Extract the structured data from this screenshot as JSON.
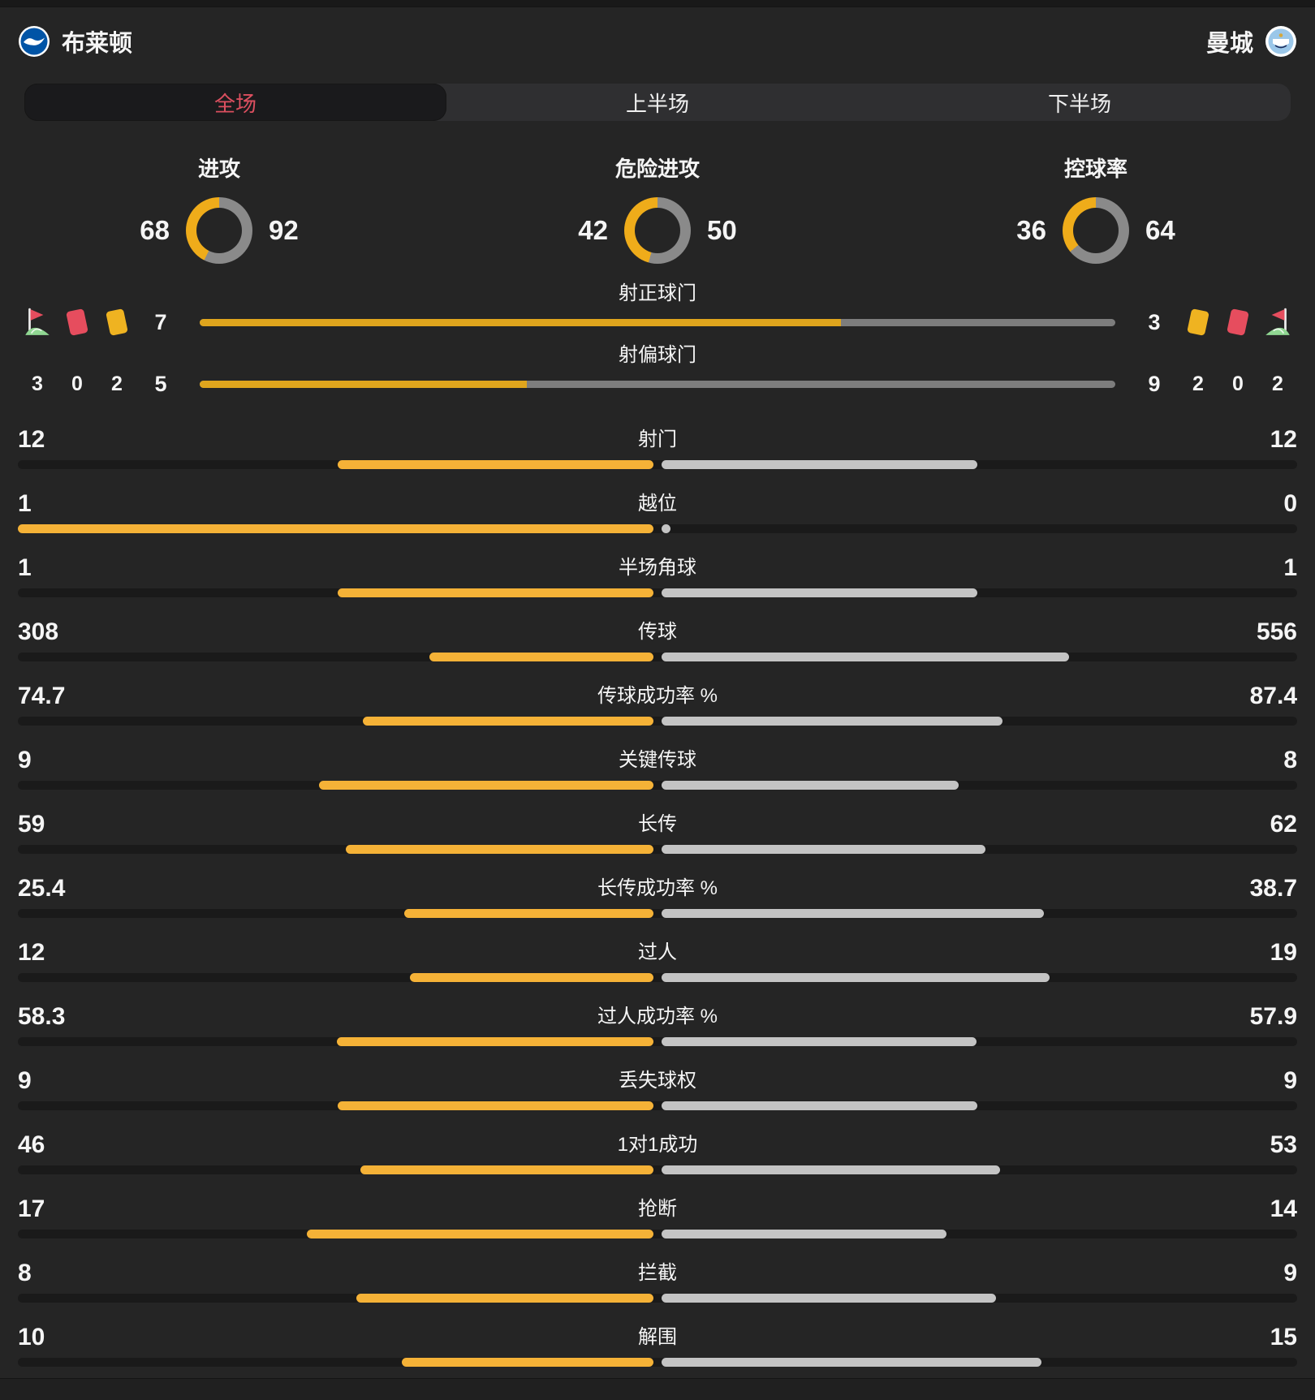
{
  "header": {
    "home_team": "布莱顿",
    "away_team": "曼城"
  },
  "tabs": [
    {
      "label": "全场",
      "selected": true
    },
    {
      "label": "上半场",
      "selected": false
    },
    {
      "label": "下半场",
      "selected": false
    }
  ],
  "donuts": [
    {
      "label": "进攻",
      "home": 68,
      "away": 92
    },
    {
      "label": "危险进攻",
      "home": 42,
      "away": 50
    },
    {
      "label": "控球率",
      "home": 36,
      "away": 64
    }
  ],
  "discipline": {
    "home": [
      {
        "type": "corner-flag",
        "count": "3"
      },
      {
        "type": "red-card",
        "count": "0"
      },
      {
        "type": "yellow-card",
        "count": "2"
      }
    ],
    "away": [
      {
        "type": "yellow-card",
        "count": "2"
      },
      {
        "type": "red-card",
        "count": "0"
      },
      {
        "type": "corner-flag",
        "count": "2"
      }
    ]
  },
  "shots": [
    {
      "label": "射正球门",
      "home": "7",
      "away": "3"
    },
    {
      "label": "射偏球门",
      "home": "5",
      "away": "9"
    }
  ],
  "stats": [
    {
      "label": "射门",
      "home": "12",
      "away": "12"
    },
    {
      "label": "越位",
      "home": "1",
      "away": "0"
    },
    {
      "label": "半场角球",
      "home": "1",
      "away": "1"
    },
    {
      "label": "传球",
      "home": "308",
      "away": "556"
    },
    {
      "label": "传球成功率 %",
      "home": "74.7",
      "away": "87.4"
    },
    {
      "label": "关键传球",
      "home": "9",
      "away": "8"
    },
    {
      "label": "长传",
      "home": "59",
      "away": "62"
    },
    {
      "label": "长传成功率 %",
      "home": "25.4",
      "away": "38.7"
    },
    {
      "label": "过人",
      "home": "12",
      "away": "19"
    },
    {
      "label": "过人成功率 %",
      "home": "58.3",
      "away": "57.9"
    },
    {
      "label": "丢失球权",
      "home": "9",
      "away": "9"
    },
    {
      "label": "1对1成功",
      "home": "46",
      "away": "53"
    },
    {
      "label": "抢断",
      "home": "17",
      "away": "14"
    },
    {
      "label": "拦截",
      "home": "8",
      "away": "9"
    },
    {
      "label": "解围",
      "home": "10",
      "away": "15"
    }
  ],
  "colors": {
    "background": "#252525",
    "home_bar": "#F5B237",
    "away_bar": "#C4C4C4",
    "shots_home_bar": "#DFA51D",
    "shots_away_bar": "#7D7D7D",
    "donut_home": "#EFAC1A",
    "donut_away": "#8A8A8A",
    "selected_tab_text": "#DB4F5F",
    "red_card": "#E64D5E",
    "yellow_card": "#EFB321",
    "flag_green": "#90D792",
    "track": "#1A1A1A"
  }
}
